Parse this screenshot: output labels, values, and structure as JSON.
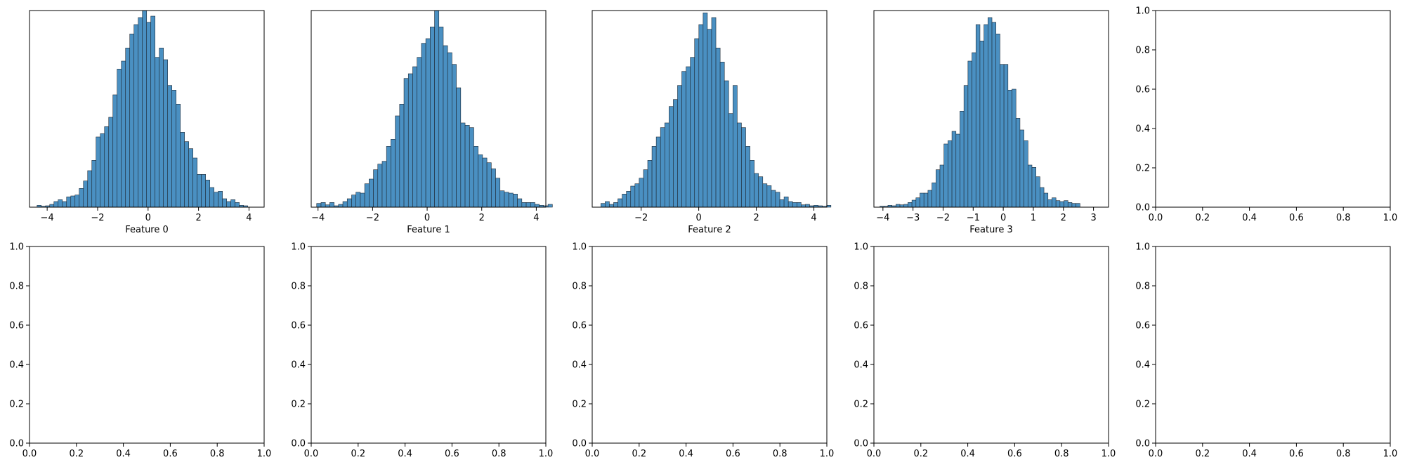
{
  "chart_data": [
    {
      "panel": "histogram-feature-0",
      "type": "bar",
      "xlabel": "Feature 0",
      "xlim": [
        -4.7,
        4.6
      ],
      "ylim": [
        0,
        4.2
      ],
      "xticks": [
        -4,
        -2,
        0,
        2,
        4
      ],
      "bin_edges_start": -4.4,
      "bin_width": 0.167,
      "counts": [
        0.04,
        0.02,
        0.03,
        0.06,
        0.12,
        0.16,
        0.12,
        0.22,
        0.24,
        0.26,
        0.4,
        0.56,
        0.78,
        1.0,
        1.5,
        1.57,
        1.72,
        1.92,
        2.4,
        2.95,
        3.12,
        3.4,
        3.7,
        3.9,
        4.05,
        4.2,
        3.95,
        4.08,
        3.2,
        3.4,
        3.15,
        2.6,
        2.5,
        2.2,
        1.6,
        1.4,
        1.25,
        1.05,
        0.7,
        0.7,
        0.58,
        0.42,
        0.32,
        0.34,
        0.18,
        0.12,
        0.16,
        0.1,
        0.04,
        0.03
      ],
      "bar_color": "#4a90c2"
    },
    {
      "panel": "histogram-feature-1",
      "type": "bar",
      "xlabel": "Feature 1",
      "xlim": [
        -4.25,
        4.35
      ],
      "ylim": [
        0,
        4.2
      ],
      "xticks": [
        -4,
        -2,
        0,
        2,
        4
      ],
      "bin_edges_start": -4.05,
      "bin_width": 0.16,
      "counts": [
        0.08,
        0.1,
        0.05,
        0.1,
        0.03,
        0.06,
        0.12,
        0.18,
        0.26,
        0.32,
        0.3,
        0.5,
        0.6,
        0.8,
        0.92,
        0.98,
        1.3,
        1.45,
        1.95,
        2.2,
        2.75,
        2.85,
        3.0,
        3.2,
        3.5,
        3.6,
        3.85,
        4.2,
        3.85,
        3.45,
        3.3,
        3.05,
        2.55,
        1.8,
        1.75,
        1.7,
        1.3,
        1.12,
        1.05,
        0.95,
        0.82,
        0.62,
        0.35,
        0.32,
        0.3,
        0.28,
        0.18,
        0.1,
        0.1,
        0.1,
        0.06,
        0.04,
        0.03,
        0.06
      ],
      "bar_color": "#4a90c2"
    },
    {
      "panel": "histogram-feature-2",
      "type": "bar",
      "xlabel": "Feature 2",
      "xlim": [
        -3.7,
        4.45
      ],
      "ylim": [
        0,
        4.2
      ],
      "xticks": [
        -2,
        0,
        2,
        4
      ],
      "bin_edges_start": -3.4,
      "bin_width": 0.148,
      "counts": [
        0.08,
        0.12,
        0.06,
        0.1,
        0.18,
        0.28,
        0.34,
        0.45,
        0.5,
        0.62,
        0.8,
        1.0,
        1.3,
        1.5,
        1.7,
        1.8,
        2.15,
        2.3,
        2.6,
        2.9,
        3.0,
        3.2,
        3.6,
        3.9,
        4.15,
        3.8,
        4.05,
        3.4,
        3.1,
        2.7,
        2.0,
        2.6,
        1.8,
        1.7,
        1.3,
        1.0,
        0.72,
        0.65,
        0.5,
        0.46,
        0.36,
        0.32,
        0.16,
        0.22,
        0.12,
        0.1,
        0.1,
        0.05,
        0.06,
        0.03,
        0.04,
        0.03,
        0.02,
        0.04
      ],
      "bar_color": "#4a90c2"
    },
    {
      "panel": "histogram-feature-3",
      "type": "bar",
      "xlabel": "Feature 3",
      "xlim": [
        -4.3,
        3.5
      ],
      "ylim": [
        0,
        4.2
      ],
      "xticks": [
        -4,
        -3,
        -2,
        -1,
        0,
        1,
        2,
        3
      ],
      "bin_edges_start": -4.1,
      "bin_width": 0.133,
      "counts": [
        0.02,
        0.02,
        0.04,
        0.03,
        0.06,
        0.05,
        0.06,
        0.1,
        0.15,
        0.2,
        0.3,
        0.3,
        0.36,
        0.52,
        0.8,
        0.9,
        1.35,
        1.42,
        1.62,
        1.56,
        2.05,
        2.6,
        3.12,
        3.3,
        3.9,
        3.55,
        3.9,
        4.05,
        3.95,
        3.7,
        3.05,
        3.05,
        2.5,
        2.52,
        1.9,
        1.65,
        1.42,
        0.9,
        0.85,
        0.65,
        0.42,
        0.3,
        0.16,
        0.2,
        0.14,
        0.12,
        0.14,
        0.1,
        0.08,
        0.08
      ],
      "bar_color": "#4a90c2"
    },
    {
      "panel": "empty-row1-col5",
      "type": "bar",
      "xlim": [
        0,
        1
      ],
      "ylim": [
        0,
        1
      ],
      "xticks": [
        0.0,
        0.2,
        0.4,
        0.6,
        0.8,
        1.0
      ],
      "yticks": [
        0.0,
        0.2,
        0.4,
        0.6,
        0.8,
        1.0
      ],
      "xtick_labels": [
        "0.0",
        "0.2",
        "0.4",
        "0.6",
        "0.8",
        "1.0"
      ],
      "ytick_labels": [
        "0.0",
        "0.2",
        "0.4",
        "0.6",
        "0.8",
        "1.0"
      ]
    },
    {
      "panel": "empty-row2-col1",
      "type": "bar",
      "xlim": [
        0,
        1
      ],
      "ylim": [
        0,
        1
      ],
      "xticks": [
        0.0,
        0.2,
        0.4,
        0.6,
        0.8,
        1.0
      ],
      "yticks": [
        0.0,
        0.2,
        0.4,
        0.6,
        0.8,
        1.0
      ],
      "xtick_labels": [
        "0.0",
        "0.2",
        "0.4",
        "0.6",
        "0.8",
        "1.0"
      ],
      "ytick_labels": [
        "0.0",
        "0.2",
        "0.4",
        "0.6",
        "0.8",
        "1.0"
      ]
    },
    {
      "panel": "empty-row2-col2",
      "type": "bar",
      "xlim": [
        0,
        1
      ],
      "ylim": [
        0,
        1
      ],
      "xticks": [
        0.0,
        0.2,
        0.4,
        0.6,
        0.8,
        1.0
      ],
      "yticks": [
        0.0,
        0.2,
        0.4,
        0.6,
        0.8,
        1.0
      ],
      "xtick_labels": [
        "0.0",
        "0.2",
        "0.4",
        "0.6",
        "0.8",
        "1.0"
      ],
      "ytick_labels": [
        "0.0",
        "0.2",
        "0.4",
        "0.6",
        "0.8",
        "1.0"
      ]
    },
    {
      "panel": "empty-row2-col3",
      "type": "bar",
      "xlim": [
        0,
        1
      ],
      "ylim": [
        0,
        1
      ],
      "xticks": [
        0.0,
        0.2,
        0.4,
        0.6,
        0.8,
        1.0
      ],
      "yticks": [
        0.0,
        0.2,
        0.4,
        0.6,
        0.8,
        1.0
      ],
      "xtick_labels": [
        "0.0",
        "0.2",
        "0.4",
        "0.6",
        "0.8",
        "1.0"
      ],
      "ytick_labels": [
        "0.0",
        "0.2",
        "0.4",
        "0.6",
        "0.8",
        "1.0"
      ]
    },
    {
      "panel": "empty-row2-col4",
      "type": "bar",
      "xlim": [
        0,
        1
      ],
      "ylim": [
        0,
        1
      ],
      "xticks": [
        0.0,
        0.2,
        0.4,
        0.6,
        0.8,
        1.0
      ],
      "yticks": [
        0.0,
        0.2,
        0.4,
        0.6,
        0.8,
        1.0
      ],
      "xtick_labels": [
        "0.0",
        "0.2",
        "0.4",
        "0.6",
        "0.8",
        "1.0"
      ],
      "ytick_labels": [
        "0.0",
        "0.2",
        "0.4",
        "0.6",
        "0.8",
        "1.0"
      ]
    },
    {
      "panel": "empty-row2-col5",
      "type": "bar",
      "xlim": [
        0,
        1
      ],
      "ylim": [
        0,
        1
      ],
      "xticks": [
        0.0,
        0.2,
        0.4,
        0.6,
        0.8,
        1.0
      ],
      "yticks": [
        0.0,
        0.2,
        0.4,
        0.6,
        0.8,
        1.0
      ],
      "xtick_labels": [
        "0.0",
        "0.2",
        "0.4",
        "0.6",
        "0.8",
        "1.0"
      ],
      "ytick_labels": [
        "0.0",
        "0.2",
        "0.4",
        "0.6",
        "0.8",
        "1.0"
      ]
    }
  ]
}
